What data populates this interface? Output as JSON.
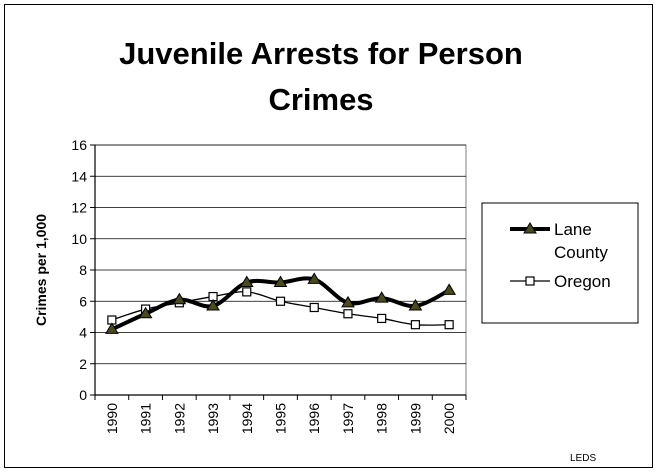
{
  "chart_data": {
    "type": "line",
    "title_lines": [
      "Juvenile Arrests for Person",
      "Crimes"
    ],
    "xlabel": "",
    "ylabel": "Crimes per 1,000",
    "ylim": [
      0,
      16
    ],
    "yticks": [
      0,
      2,
      4,
      6,
      8,
      10,
      12,
      14,
      16
    ],
    "grid": "horizontal",
    "legend_position": "right",
    "categories": [
      "1990",
      "1991",
      "1992",
      "1993",
      "1994",
      "1995",
      "1996",
      "1997",
      "1998",
      "1999",
      "2000"
    ],
    "series": [
      {
        "name_lines": [
          "Lane",
          "County"
        ],
        "marker": "triangle",
        "color": "#000000",
        "marker_color": "#4a4a1a",
        "values": [
          4.2,
          5.2,
          6.1,
          5.7,
          7.2,
          7.2,
          7.4,
          5.9,
          6.2,
          5.7,
          6.7
        ]
      },
      {
        "name_lines": [
          "Oregon"
        ],
        "marker": "square",
        "color": "#000000",
        "marker_color": "#ffffff",
        "values": [
          4.8,
          5.5,
          5.9,
          6.3,
          6.6,
          6.0,
          5.6,
          5.2,
          4.9,
          4.5,
          4.5
        ]
      }
    ],
    "source": "LEDS"
  }
}
